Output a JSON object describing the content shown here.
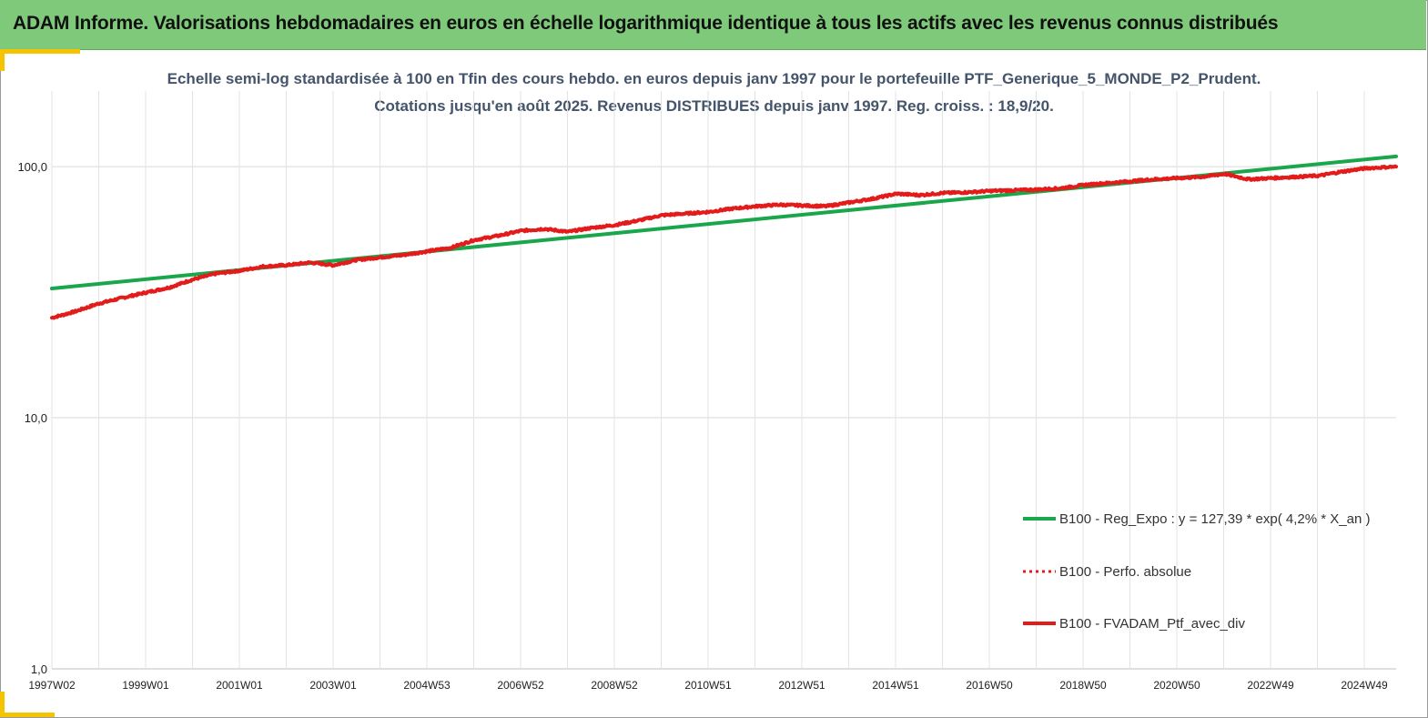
{
  "banner": {
    "title": "ADAM Informe. Valorisations hebdomadaires en euros en échelle logarithmique identique à tous les actifs avec les revenus connus distribués"
  },
  "chart_data": {
    "type": "line",
    "title": "Echelle semi-log standardisée à 100 en Tfin des cours hebdo.  en euros depuis janv 1997 pour le portefeuille PTF_Generique_5_MONDE_P2_Prudent.",
    "subtitle": "Cotations  jusqu'en août 2025. Revenus DISTRIBUES depuis janv 1997. Reg. croiss. : 18,9/20.",
    "xlabel": "",
    "ylabel": "",
    "y_scale": "log",
    "ylim": [
      1,
      200
    ],
    "y_ticks": [
      1,
      10,
      100
    ],
    "y_tick_labels": [
      "1,0",
      "10,0",
      "100,0"
    ],
    "x_ticks": [
      "1997W02",
      "1999W01",
      "2001W01",
      "2003W01",
      "2004W53",
      "2006W52",
      "2008W52",
      "2010W51",
      "2012W51",
      "2014W51",
      "2016W50",
      "2018W50",
      "2020W50",
      "2022W49",
      "2024W49"
    ],
    "x_range": [
      1997.0,
      2025.65
    ],
    "grid": true,
    "legend_position": "lower-right",
    "series": [
      {
        "name": "B100 - Reg_Expo : y = 127,39 * exp( 4,2% *  X_an )",
        "color": "#1aa64a",
        "style": "solid",
        "x": [
          1997.0,
          2025.65
        ],
        "values": [
          32.7,
          109.8
        ]
      },
      {
        "name": "B100 - Perfo. absolue",
        "color": "#e31b1b",
        "style": "dotted",
        "x": [],
        "values": []
      },
      {
        "name": "B100 - FVADAM_Ptf_avec_div",
        "color": "#e31b1b",
        "style": "solid",
        "x": [
          1997.0,
          1997.5,
          1998.0,
          1998.5,
          1999.0,
          1999.5,
          2000.0,
          2000.5,
          2001.0,
          2001.5,
          2002.0,
          2002.5,
          2003.0,
          2003.5,
          2004.0,
          2004.5,
          2005.0,
          2005.5,
          2006.0,
          2006.5,
          2007.0,
          2007.5,
          2008.0,
          2008.5,
          2009.0,
          2009.5,
          2010.0,
          2010.5,
          2011.0,
          2011.5,
          2012.0,
          2012.5,
          2013.0,
          2013.5,
          2014.0,
          2014.5,
          2015.0,
          2015.5,
          2016.0,
          2016.5,
          2017.0,
          2017.5,
          2018.0,
          2018.5,
          2019.0,
          2019.5,
          2020.0,
          2020.5,
          2021.0,
          2021.5,
          2022.0,
          2022.5,
          2023.0,
          2023.5,
          2024.0,
          2024.5,
          2025.0,
          2025.65
        ],
        "values": [
          25.0,
          26.5,
          28.5,
          30.0,
          31.5,
          33.0,
          35.5,
          37.5,
          38.5,
          40.0,
          40.5,
          41.5,
          40.5,
          42.5,
          43.5,
          44.5,
          46.0,
          47.5,
          51.0,
          53.0,
          55.5,
          56.5,
          55.0,
          57.0,
          58.5,
          61.0,
          64.0,
          65.0,
          66.0,
          68.0,
          69.5,
          70.5,
          70.0,
          69.5,
          72.0,
          74.5,
          78.0,
          77.0,
          78.5,
          79.0,
          80.0,
          80.5,
          81.0,
          82.0,
          84.5,
          86.0,
          87.5,
          89.0,
          90.0,
          91.0,
          93.5,
          89.0,
          90.0,
          91.0,
          92.0,
          95.5,
          98.5,
          100.0
        ]
      }
    ]
  }
}
